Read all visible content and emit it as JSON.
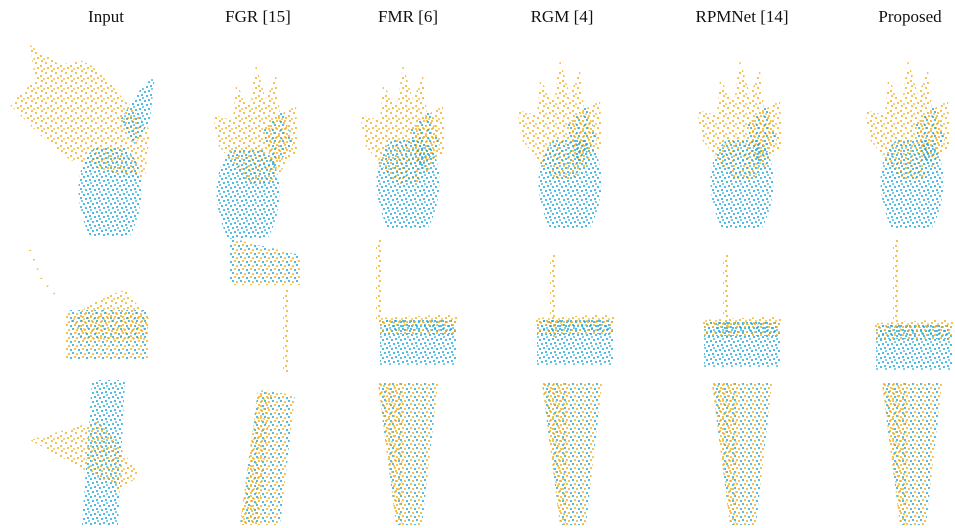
{
  "columns": [
    "Input",
    "FGR [15]",
    "FMR [6]",
    "RGM [4]",
    "RPMNet [14]",
    "Proposed"
  ]
}
